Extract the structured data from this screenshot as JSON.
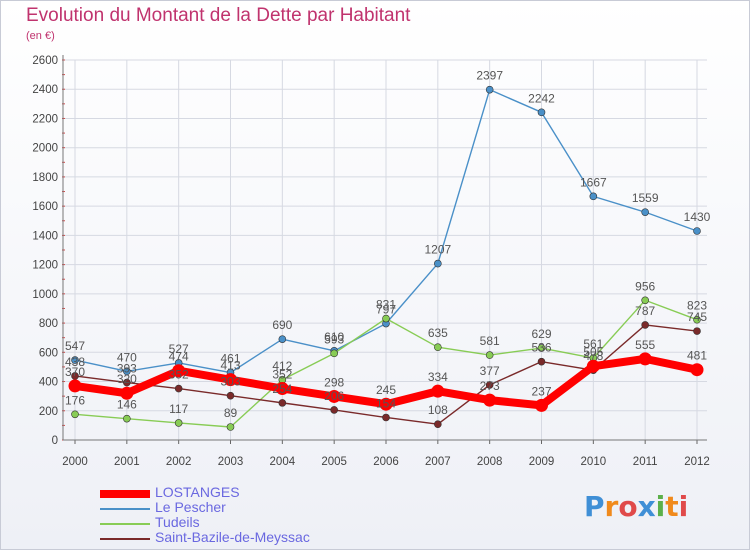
{
  "header": {
    "title": "Evolution du Montant de la Dette par Habitant",
    "subtitle": "(en €)"
  },
  "logo": {
    "text": "Proxiti"
  },
  "chart_data": {
    "type": "line",
    "title": "Evolution du Montant de la Dette par Habitant",
    "subtitle": "(en €)",
    "xlabel": "",
    "ylabel": "",
    "x": [
      "2000",
      "2001",
      "2002",
      "2003",
      "2004",
      "2005",
      "2006",
      "2007",
      "2008",
      "2009",
      "2010",
      "2011",
      "2012"
    ],
    "ylim": [
      0,
      2600
    ],
    "yticks": [
      0,
      200,
      400,
      600,
      800,
      1000,
      1200,
      1400,
      1600,
      1800,
      2000,
      2200,
      2400,
      2600
    ],
    "grid": true,
    "legend_position": "bottom-left",
    "series": [
      {
        "name": "LOSTANGES",
        "color": "#ff0000",
        "values": [
          370,
          320,
          474,
          413,
          352,
          298,
          245,
          334,
          273,
          237,
          505,
          555,
          481
        ],
        "labels": [
          "370",
          "320",
          "474",
          "413",
          "352",
          "298",
          "245",
          "334",
          "273",
          "237",
          "505",
          "555",
          "481"
        ]
      },
      {
        "name": "Le Pescher",
        "color": "#4a90c8",
        "values": [
          547,
          470,
          527,
          461,
          690,
          610,
          797,
          1207,
          2397,
          2242,
          1667,
          1559,
          1430
        ],
        "labels": [
          "547",
          "470",
          "527",
          "461",
          "690",
          "610",
          "797",
          "1207",
          "2397",
          "2242",
          "1667",
          "1559",
          "1430"
        ]
      },
      {
        "name": "Tudeils",
        "color": "#88cc55",
        "values": [
          176,
          146,
          117,
          89,
          412,
          593,
          831,
          635,
          581,
          629,
          561,
          956,
          823
        ],
        "labels": [
          "176",
          "146",
          "117",
          "89",
          "412",
          "593",
          "831",
          "635",
          "581",
          "629",
          "561",
          "956",
          "823"
        ]
      },
      {
        "name": "Saint-Bazile-de-Meyssac",
        "color": "#7a2a2a",
        "values": [
          438,
          393,
          352,
          303,
          254,
          206,
          154,
          108,
          377,
          536,
          478,
          787,
          745
        ],
        "labels": [
          "438",
          "393",
          "352",
          "303",
          "254",
          "206",
          "154",
          "108",
          "377",
          "536",
          "478",
          "787",
          "745"
        ]
      }
    ]
  }
}
